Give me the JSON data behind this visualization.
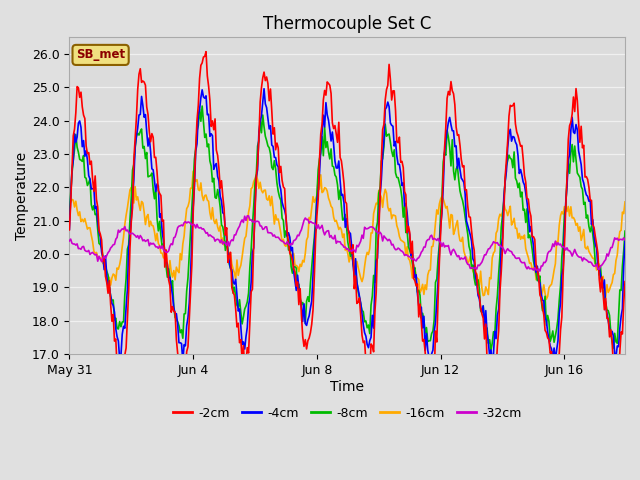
{
  "title": "Thermocouple Set C",
  "xlabel": "Time",
  "ylabel": "Temperature",
  "ylim": [
    17.0,
    26.5
  ],
  "yticks": [
    17.0,
    18.0,
    19.0,
    20.0,
    21.0,
    22.0,
    23.0,
    24.0,
    25.0,
    26.0
  ],
  "fig_bg": "#e0e0e0",
  "plot_bg": "#dcdcdc",
  "grid_color": "#f0f0f0",
  "series": [
    {
      "label": "-2cm",
      "color": "#ff0000"
    },
    {
      "label": "-4cm",
      "color": "#0000ff"
    },
    {
      "label": "-8cm",
      "color": "#00bb00"
    },
    {
      "label": "-16cm",
      "color": "#ffaa00"
    },
    {
      "label": "-32cm",
      "color": "#cc00cc"
    }
  ],
  "xtick_labels": [
    "May 31",
    "Jun 4",
    "Jun 8",
    "Jun 12",
    "Jun 16"
  ],
  "xtick_positions": [
    0,
    96,
    192,
    288,
    384
  ],
  "annotation_text": "SB_met",
  "n_points": 432,
  "period": 48.0,
  "seed": 42,
  "linewidth": 1.2,
  "title_fontsize": 12,
  "axis_fontsize": 9,
  "label_fontsize": 10
}
